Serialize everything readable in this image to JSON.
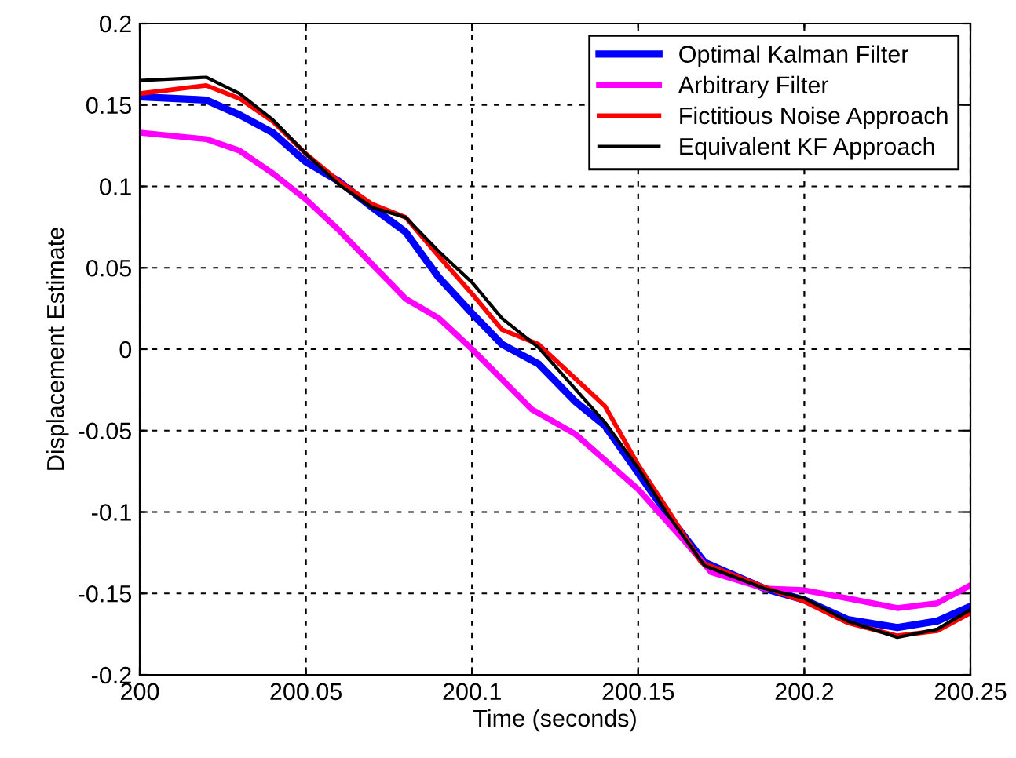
{
  "chart_data": {
    "type": "line",
    "xlabel": "Time (seconds)",
    "ylabel": "Displacement Estimate",
    "xlim": [
      200,
      200.25
    ],
    "ylim": [
      -0.2,
      0.2
    ],
    "xticks": [
      200,
      200.05,
      200.1,
      200.15,
      200.2,
      200.25
    ],
    "yticks": [
      -0.2,
      -0.15,
      -0.1,
      -0.05,
      0,
      0.05,
      0.1,
      0.15,
      0.2
    ],
    "grid": true,
    "legend": "top right",
    "line_style": "solid",
    "marker": "none",
    "series": [
      {
        "name": "Optimal Kalman Filter",
        "color": "#0000ff",
        "x": [
          200,
          200.02,
          200.03,
          200.04,
          200.05,
          200.06,
          200.07,
          200.08,
          200.09,
          200.1,
          200.109,
          200.12,
          200.131,
          200.14,
          200.15,
          200.159,
          200.17,
          200.188,
          200.2,
          200.213,
          200.228,
          200.24,
          200.25
        ],
        "values": [
          0.155,
          0.153,
          0.144,
          0.133,
          0.115,
          0.103,
          0.087,
          0.072,
          0.044,
          0.022,
          0.003,
          -0.009,
          -0.032,
          -0.047,
          -0.076,
          -0.102,
          -0.131,
          -0.147,
          -0.154,
          -0.166,
          -0.171,
          -0.167,
          -0.158
        ]
      },
      {
        "name": "Arbitrary Filter",
        "color": "#ff00ff",
        "x": [
          200,
          200.02,
          200.03,
          200.04,
          200.05,
          200.06,
          200.07,
          200.08,
          200.09,
          200.1,
          200.118,
          200.131,
          200.15,
          200.164,
          200.172,
          200.188,
          200.2,
          200.213,
          200.228,
          200.24,
          200.25
        ],
        "values": [
          0.133,
          0.129,
          0.122,
          0.108,
          0.092,
          0.073,
          0.052,
          0.031,
          0.019,
          0.0,
          -0.037,
          -0.052,
          -0.086,
          -0.118,
          -0.137,
          -0.147,
          -0.148,
          -0.153,
          -0.159,
          -0.156,
          -0.145
        ]
      },
      {
        "name": "Fictitious Noise Approach",
        "color": "#ff0000",
        "x": [
          200,
          200.02,
          200.03,
          200.04,
          200.05,
          200.06,
          200.07,
          200.08,
          200.09,
          200.1,
          200.109,
          200.12,
          200.14,
          200.15,
          200.159,
          200.169,
          200.189,
          200.2,
          200.213,
          200.228,
          200.24,
          200.25
        ],
        "values": [
          0.157,
          0.162,
          0.154,
          0.14,
          0.12,
          0.103,
          0.089,
          0.081,
          0.057,
          0.034,
          0.012,
          0.003,
          -0.035,
          -0.071,
          -0.099,
          -0.131,
          -0.147,
          -0.155,
          -0.168,
          -0.176,
          -0.173,
          -0.162
        ]
      },
      {
        "name": "Equivalent KF Approach",
        "color": "#000000",
        "x": [
          200,
          200.02,
          200.03,
          200.04,
          200.05,
          200.06,
          200.07,
          200.08,
          200.09,
          200.1,
          200.109,
          200.12,
          200.14,
          200.15,
          200.159,
          200.17,
          200.188,
          200.2,
          200.213,
          200.228,
          200.24,
          200.25
        ],
        "values": [
          0.165,
          0.167,
          0.157,
          0.141,
          0.12,
          0.101,
          0.087,
          0.081,
          0.06,
          0.041,
          0.019,
          0.001,
          -0.045,
          -0.073,
          -0.102,
          -0.133,
          -0.147,
          -0.153,
          -0.167,
          -0.177,
          -0.172,
          -0.16
        ]
      }
    ]
  }
}
